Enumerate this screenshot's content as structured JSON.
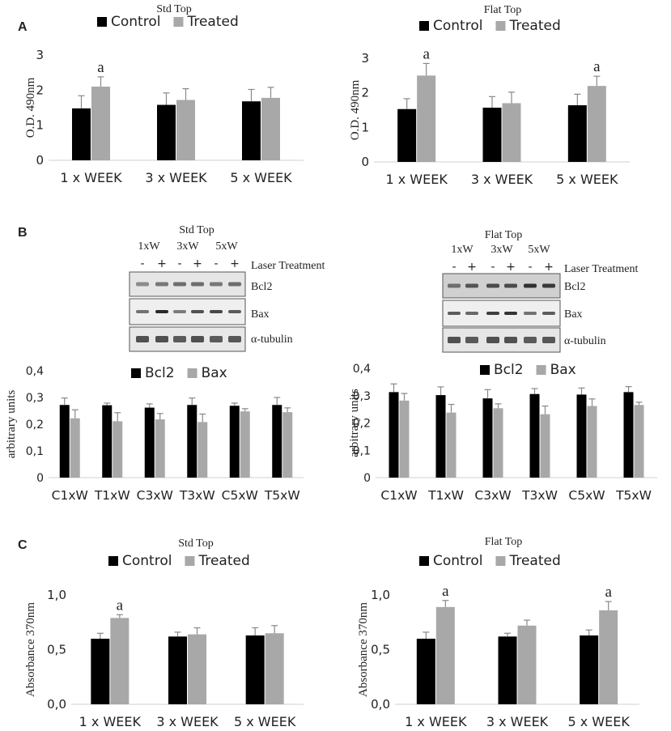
{
  "colors": {
    "control": "#000000",
    "treated": "#a8a8a8",
    "bcl2": "#000000",
    "bax": "#a8a8a8",
    "error": "#888888"
  },
  "panels": {
    "a": "A",
    "b": "B",
    "c": "C"
  },
  "blots": {
    "std": {
      "title": "Std Top",
      "groups": [
        "1xW",
        "3xW",
        "5xW"
      ],
      "signs": [
        "-",
        "+",
        "-",
        "+",
        "-",
        "+"
      ],
      "treatment_label": "Laser Treatment",
      "bands": [
        "Bcl2",
        "Bax",
        "α-tubulin"
      ]
    },
    "flat": {
      "title": "Flat Top",
      "groups": [
        "1xW",
        "3xW",
        "5xW"
      ],
      "signs": [
        "-",
        "+",
        "-",
        "+",
        "-",
        "+"
      ],
      "treatment_label": "Laser Treatment",
      "bands": [
        "Bcl2",
        "Bax",
        "α-tubulin"
      ]
    }
  },
  "chart_data": [
    {
      "id": "a1",
      "type": "bar",
      "title": "Std Top",
      "ylabel": "O.D. 490nm",
      "xlabel": "",
      "categories": [
        "1 x WEEK",
        "3 x WEEK",
        "5 x WEEK"
      ],
      "ylim": [
        0,
        3
      ],
      "yticks": [
        "0",
        "1",
        "2",
        "3"
      ],
      "series": [
        {
          "name": "Control",
          "values": [
            1.48,
            1.58,
            1.68
          ],
          "errors": [
            0.36,
            0.34,
            0.34
          ]
        },
        {
          "name": "Treated",
          "values": [
            2.1,
            1.72,
            1.78
          ],
          "errors": [
            0.28,
            0.32,
            0.3
          ]
        }
      ],
      "annotations": [
        "a",
        "",
        ""
      ]
    },
    {
      "id": "a2",
      "type": "bar",
      "title": "Flat Top",
      "ylabel": "O.D. 490nm",
      "xlabel": "",
      "categories": [
        "1 x WEEK",
        "3 x WEEK",
        "5 x WEEK"
      ],
      "ylim": [
        0,
        3
      ],
      "yticks": [
        "0",
        "1",
        "2",
        "3"
      ],
      "series": [
        {
          "name": "Control",
          "values": [
            1.53,
            1.57,
            1.64
          ],
          "errors": [
            0.3,
            0.32,
            0.32
          ]
        },
        {
          "name": "Treated",
          "values": [
            2.5,
            1.7,
            2.2
          ],
          "errors": [
            0.35,
            0.32,
            0.28
          ]
        }
      ],
      "annotations": [
        "a",
        "",
        "a"
      ]
    },
    {
      "id": "b1",
      "type": "bar",
      "title": "",
      "ylabel": "arbitrary units",
      "xlabel": "",
      "categories": [
        "C1xW",
        "T1xW",
        "C3xW",
        "T3xW",
        "C5xW",
        "T5xW"
      ],
      "ylim": [
        0,
        0.4
      ],
      "yticks": [
        "0",
        "0,1",
        "0,2",
        "0,3",
        "0,4"
      ],
      "series": [
        {
          "name": "Bcl2",
          "values": [
            0.272,
            0.271,
            0.262,
            0.272,
            0.269,
            0.272
          ],
          "errors": [
            0.026,
            0.008,
            0.014,
            0.026,
            0.01,
            0.028
          ]
        },
        {
          "name": "Bax",
          "values": [
            0.222,
            0.211,
            0.218,
            0.208,
            0.248,
            0.245
          ],
          "errors": [
            0.032,
            0.032,
            0.022,
            0.03,
            0.01,
            0.016
          ]
        }
      ],
      "annotations": [
        "",
        "",
        "",
        "",
        "",
        ""
      ]
    },
    {
      "id": "b2",
      "type": "bar",
      "title": "",
      "ylabel": "arbitrary units",
      "xlabel": "",
      "categories": [
        "C1xW",
        "T1xW",
        "C3xW",
        "T3xW",
        "C5xW",
        "T5xW"
      ],
      "ylim": [
        0,
        0.4
      ],
      "yticks": [
        "0",
        "0,1",
        "0,2",
        "0,3",
        "0,4"
      ],
      "series": [
        {
          "name": "Bcl2",
          "values": [
            0.313,
            0.302,
            0.29,
            0.306,
            0.304,
            0.313
          ],
          "errors": [
            0.03,
            0.03,
            0.032,
            0.02,
            0.024,
            0.02
          ]
        },
        {
          "name": "Bax",
          "values": [
            0.282,
            0.238,
            0.254,
            0.232,
            0.262,
            0.266
          ],
          "errors": [
            0.026,
            0.03,
            0.016,
            0.03,
            0.026,
            0.01
          ]
        }
      ],
      "annotations": [
        "",
        "",
        "",
        "",
        "",
        ""
      ]
    },
    {
      "id": "c1",
      "type": "bar",
      "title": "Std Top",
      "ylabel": "Absorbance 370nm",
      "xlabel": "",
      "categories": [
        "1 x WEEK",
        "3 x WEEK",
        "5 x WEEK"
      ],
      "ylim": [
        0,
        1
      ],
      "yticks": [
        "0,0",
        "0,5",
        "1,0"
      ],
      "series": [
        {
          "name": "Control",
          "values": [
            0.6,
            0.62,
            0.63
          ],
          "errors": [
            0.05,
            0.04,
            0.07
          ]
        },
        {
          "name": "Treated",
          "values": [
            0.79,
            0.64,
            0.65
          ],
          "errors": [
            0.03,
            0.06,
            0.07
          ]
        }
      ],
      "annotations": [
        "a",
        "",
        ""
      ]
    },
    {
      "id": "c2",
      "type": "bar",
      "title": "Flat Top",
      "ylabel": "Absorbance 370nm",
      "xlabel": "",
      "categories": [
        "1 x WEEK",
        "3 x WEEK",
        "5 x WEEK"
      ],
      "ylim": [
        0,
        1
      ],
      "yticks": [
        "0,0",
        "0,5",
        "1,0"
      ],
      "series": [
        {
          "name": "Control",
          "values": [
            0.6,
            0.62,
            0.63
          ],
          "errors": [
            0.06,
            0.03,
            0.05
          ]
        },
        {
          "name": "Treated",
          "values": [
            0.89,
            0.72,
            0.86
          ],
          "errors": [
            0.06,
            0.05,
            0.08
          ]
        }
      ],
      "annotations": [
        "a",
        "",
        "a"
      ]
    }
  ]
}
